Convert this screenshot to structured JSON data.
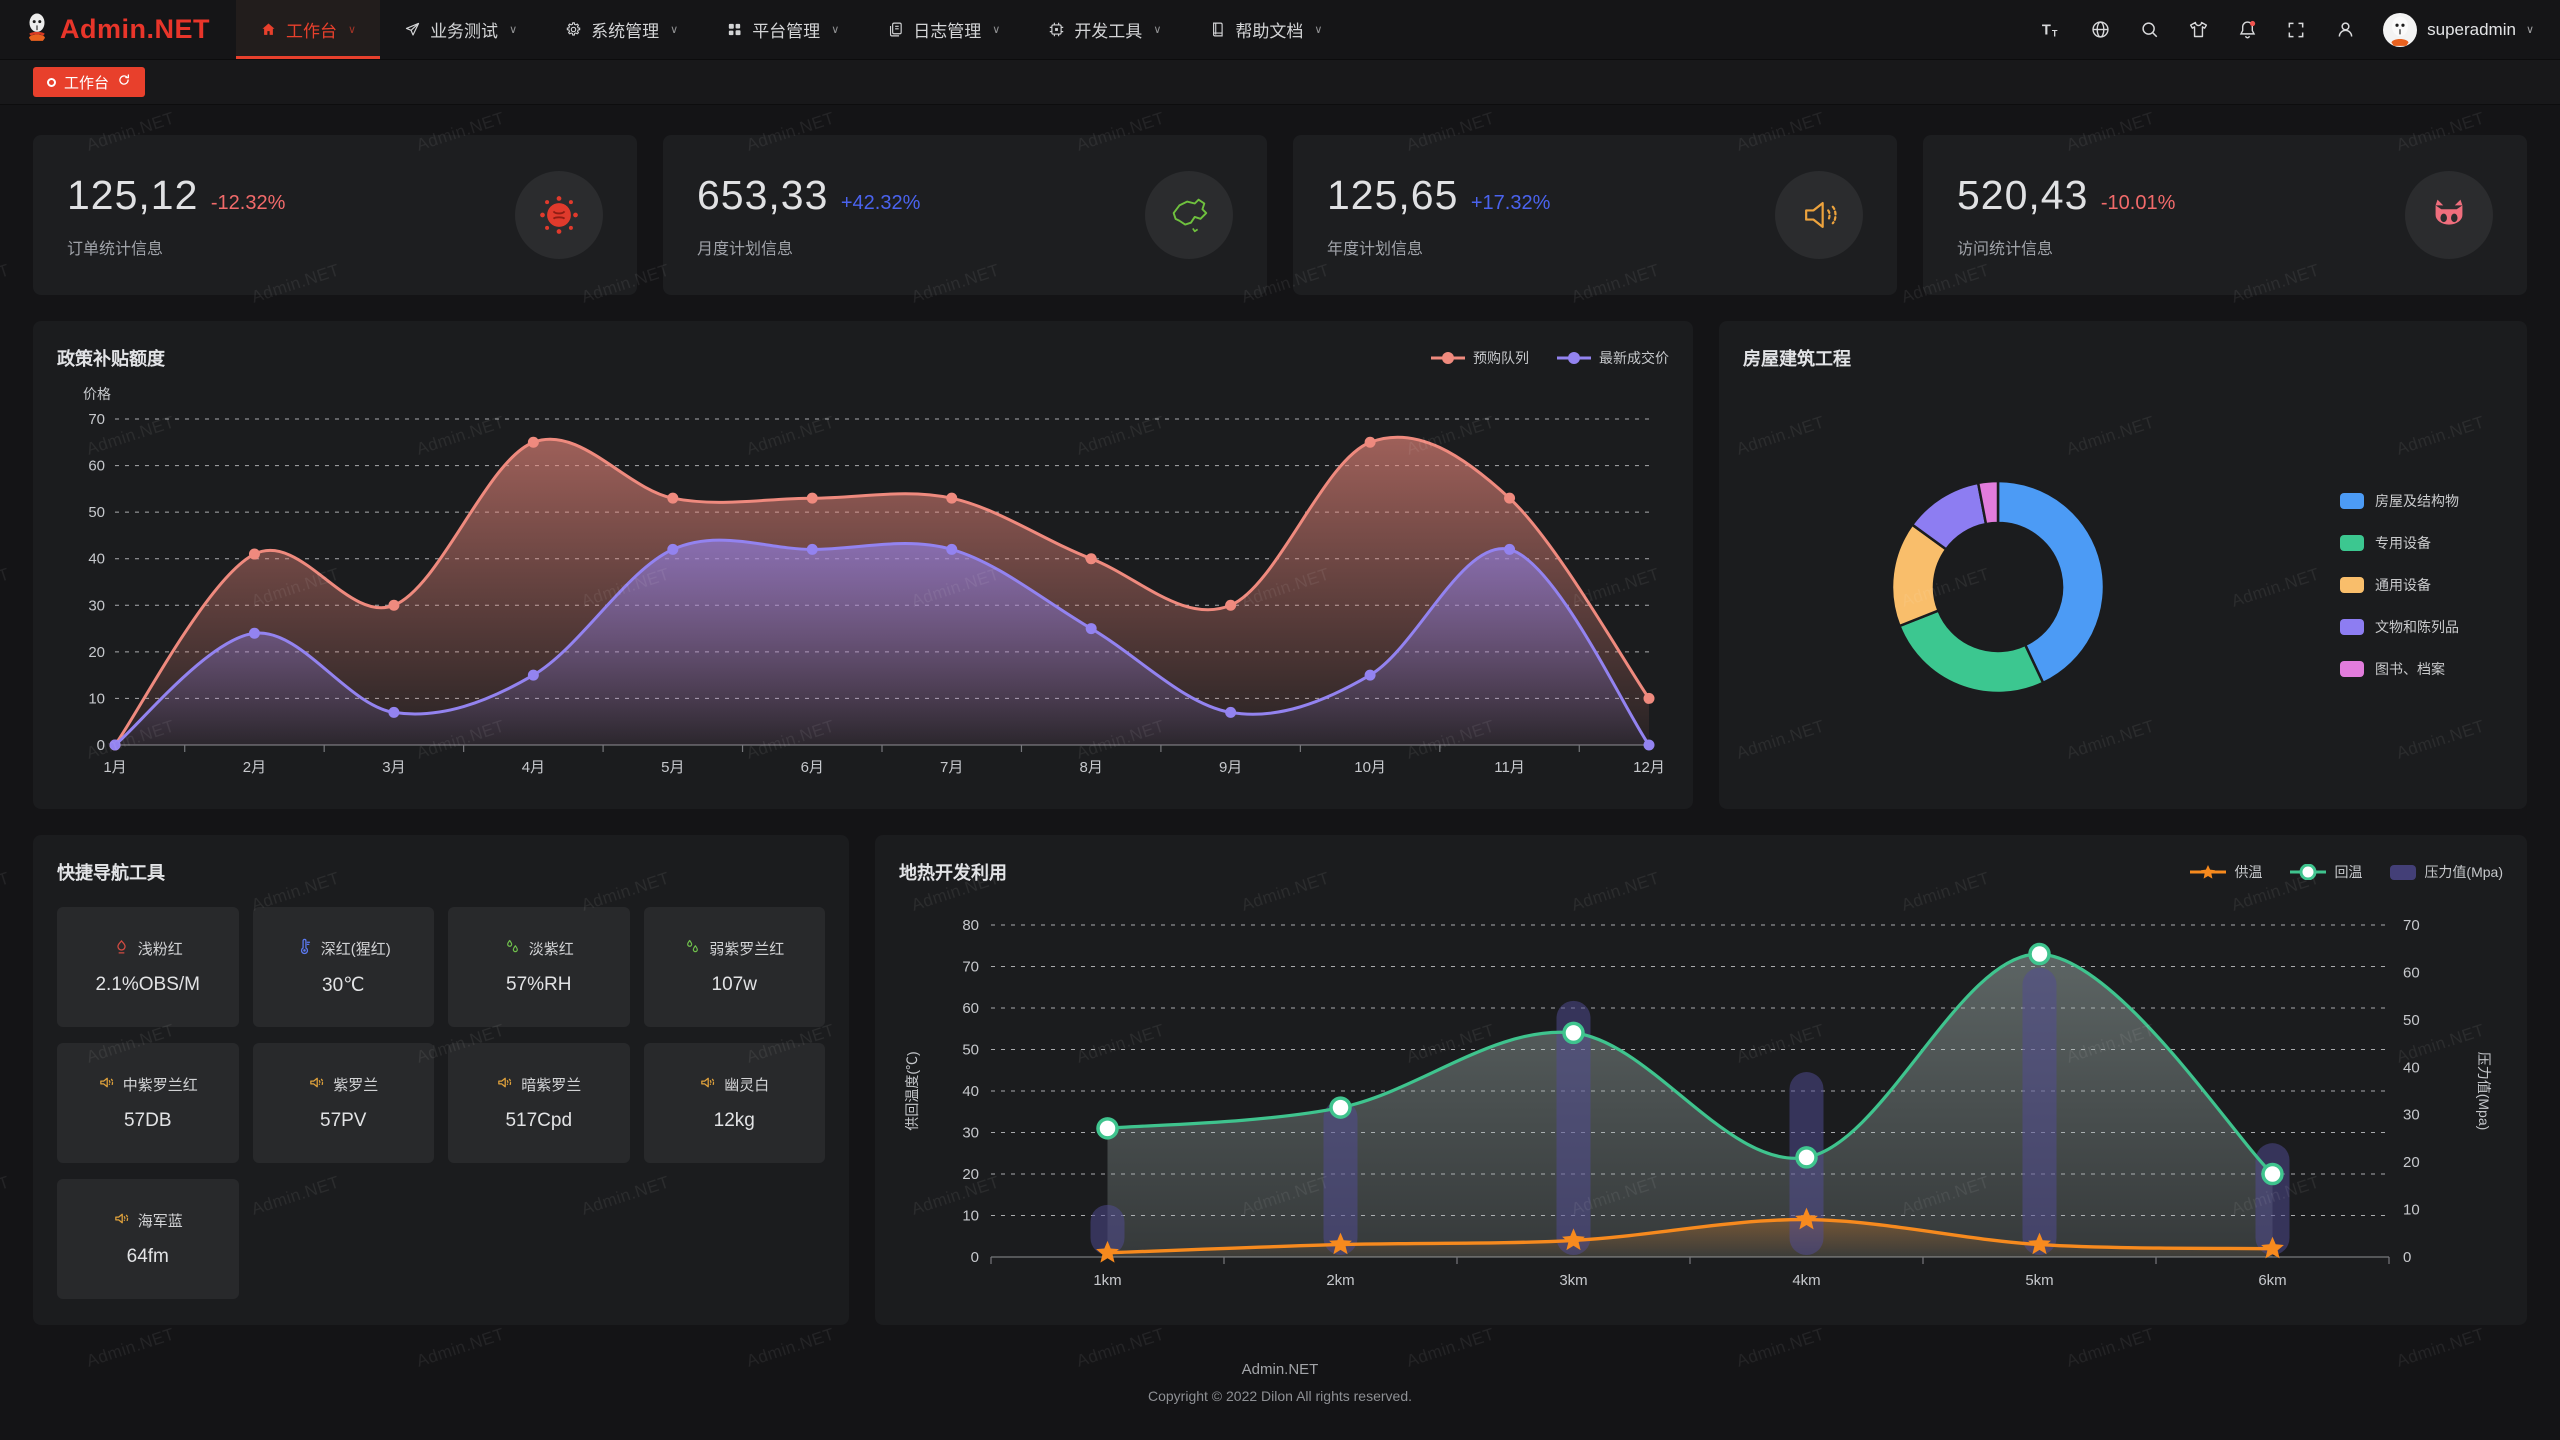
{
  "watermark": "Admin.NET",
  "navbar": {
    "logo": "Admin.NET",
    "menu": [
      {
        "label": "工作台",
        "icon": "home-icon",
        "active": true
      },
      {
        "label": "业务测试",
        "icon": "send-icon",
        "active": false
      },
      {
        "label": "系统管理",
        "icon": "gear-icon",
        "active": false
      },
      {
        "label": "平台管理",
        "icon": "grid-icon",
        "active": false
      },
      {
        "label": "日志管理",
        "icon": "log-icon",
        "active": false
      },
      {
        "label": "开发工具",
        "icon": "cpu-icon",
        "active": false
      },
      {
        "label": "帮助文档",
        "icon": "book-icon",
        "active": false
      }
    ],
    "right_icons": [
      "font-size-icon",
      "language-icon",
      "search-icon",
      "theme-icon",
      "bell-icon",
      "fullscreen-icon",
      "user-icon"
    ],
    "user": "superadmin"
  },
  "tabbar": {
    "label": "工作台"
  },
  "stats": [
    {
      "value": "125,12",
      "delta": "-12.32%",
      "trend": "down",
      "label": "订单统计信息",
      "icon": "splat-icon",
      "icon_color": "#e03a2c"
    },
    {
      "value": "653,33",
      "delta": "+42.32%",
      "trend": "up",
      "label": "月度计划信息",
      "icon": "china-map-icon",
      "icon_color": "#6fc13e"
    },
    {
      "value": "125,65",
      "delta": "+17.32%",
      "trend": "up",
      "label": "年度计划信息",
      "icon": "speaker-icon",
      "icon_color": "#eda33d"
    },
    {
      "value": "520,43",
      "delta": "-10.01%",
      "trend": "down",
      "label": "访问统计信息",
      "icon": "cat-icon",
      "icon_color": "#ef6e7d"
    }
  ],
  "chart_data": [
    {
      "id": "subsidy",
      "type": "area",
      "title": "政策补贴额度",
      "ylabel": "价格",
      "categories": [
        "1月",
        "2月",
        "3月",
        "4月",
        "5月",
        "6月",
        "7月",
        "8月",
        "9月",
        "10月",
        "11月",
        "12月"
      ],
      "series": [
        {
          "name": "预购队列",
          "color": "#ef8a7e",
          "values": [
            0,
            41,
            30,
            65,
            53,
            53,
            53,
            40,
            30,
            65,
            53,
            10
          ]
        },
        {
          "name": "最新成交价",
          "color": "#9383f0",
          "values": [
            0,
            24,
            7,
            15,
            42,
            42,
            42,
            25,
            7,
            15,
            42,
            0
          ]
        }
      ],
      "ylim": [
        0,
        70
      ],
      "ytick_step": 10,
      "grid": "dashed",
      "legend_position": "top-right"
    },
    {
      "id": "building",
      "type": "pie",
      "title": "房屋建筑工程",
      "slices": [
        {
          "label": "房屋及结构物",
          "color": "#4c9bf5",
          "value": 43
        },
        {
          "label": "专用设备",
          "color": "#3cc790",
          "value": 26
        },
        {
          "label": "通用设备",
          "color": "#f9be6b",
          "value": 16
        },
        {
          "label": "文物和陈列品",
          "color": "#8d7df2",
          "value": 12
        },
        {
          "label": "图书、档案",
          "color": "#e27cdc",
          "value": 3
        }
      ],
      "legend_position": "right"
    },
    {
      "id": "geothermal",
      "type": "line-bar",
      "title": "地热开发利用",
      "categories": [
        "1km",
        "2km",
        "3km",
        "4km",
        "5km",
        "6km"
      ],
      "ylabel_left": "供回温度(℃)",
      "ylabel_right": "压力值(Mpa)",
      "ylim_left": [
        0,
        80
      ],
      "ylim_right": [
        0,
        70
      ],
      "grid": "dashed",
      "legend_position": "top-right",
      "series": [
        {
          "name": "供温",
          "type": "line",
          "marker": "star",
          "axis": "left",
          "color": "#f78a1e",
          "values": [
            1,
            3,
            4,
            9,
            3,
            2
          ]
        },
        {
          "name": "回温",
          "type": "line",
          "marker": "circle",
          "axis": "left",
          "color": "#3fc48e",
          "values": [
            31,
            36,
            54,
            24,
            73,
            20
          ]
        },
        {
          "name": "压力值(Mpa)",
          "type": "bar",
          "marker": "rect",
          "axis": "right",
          "color": "#514b96",
          "values": [
            11,
            33,
            54,
            39,
            61,
            24
          ]
        }
      ]
    }
  ],
  "quicknav": {
    "title": "快捷导航工具",
    "items": [
      {
        "name": "浅粉红",
        "value": "2.1%OBS/M",
        "icon": "fire-icon",
        "icon_color": "#d14b42"
      },
      {
        "name": "深红(猩红)",
        "value": "30℃",
        "icon": "thermometer-icon",
        "icon_color": "#5b79f0"
      },
      {
        "name": "淡紫红",
        "value": "57%RH",
        "icon": "drops-icon",
        "icon_color": "#6fbf4c"
      },
      {
        "name": "弱紫罗兰红",
        "value": "107w",
        "icon": "drops-icon",
        "icon_color": "#6fbf4c"
      },
      {
        "name": "中紫罗兰红",
        "value": "57DB",
        "icon": "speaker-icon",
        "icon_color": "#e0a23c"
      },
      {
        "name": "紫罗兰",
        "value": "57PV",
        "icon": "speaker-icon",
        "icon_color": "#e0a23c"
      },
      {
        "name": "暗紫罗兰",
        "value": "517Cpd",
        "icon": "speaker-icon",
        "icon_color": "#e0a23c"
      },
      {
        "name": "幽灵白",
        "value": "12kg",
        "icon": "speaker-icon",
        "icon_color": "#e0a23c"
      },
      {
        "name": "海军蓝",
        "value": "64fm",
        "icon": "speaker-icon",
        "icon_color": "#e0a23c"
      }
    ]
  },
  "footer": {
    "line1": "Admin.NET",
    "line2": "Copyright © 2022 Dilon All rights reserved."
  }
}
